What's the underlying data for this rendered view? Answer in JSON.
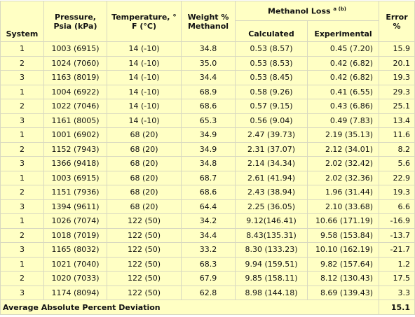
{
  "table": {
    "header": {
      "system": "System",
      "pressure": [
        "Pressure,",
        "Psia (kPa)"
      ],
      "temperature": [
        "Temperature, °",
        "F (°C)"
      ],
      "weight": [
        "Weight %",
        "Methanol"
      ],
      "methanol_loss": "Methanol Loss",
      "methanol_loss_note": "a (b)",
      "calculated": "Calculated",
      "experimental": "Experimental",
      "error": [
        "Error",
        "%"
      ]
    },
    "rows": [
      [
        "1",
        "1003 (6915)",
        "14 (-10)",
        "34.8",
        "0.53 (8.57)",
        "0.45 (7.20)",
        "15.9"
      ],
      [
        "2",
        "1024 (7060)",
        "14 (-10)",
        "35.0",
        "0.53 (8.53)",
        "0.42 (6.82)",
        "20.1"
      ],
      [
        "3",
        "1163 (8019)",
        "14 (-10)",
        "34.4",
        "0.53 (8.45)",
        "0.42 (6.82)",
        "19.3"
      ],
      [
        "1",
        "1004 (6922)",
        "14 (-10)",
        "68.9",
        "0.58 (9.26)",
        "0.41 (6.55)",
        "29.3"
      ],
      [
        "2",
        "1022 (7046)",
        "14 (-10)",
        "68.6",
        "0.57 (9.15)",
        "0.43 (6.86)",
        "25.1"
      ],
      [
        "3",
        "1161 (8005)",
        "14 (-10)",
        "65.3",
        "0.56 (9.04)",
        "0.49 (7.83)",
        "13.4"
      ],
      [
        "1",
        "1001 (6902)",
        "68 (20)",
        "34.9",
        "2.47 (39.73)",
        "2.19 (35.13)",
        "11.6"
      ],
      [
        "2",
        "1152 (7943)",
        "68 (20)",
        "34.9",
        "2.31 (37.07)",
        "2.12 (34.01)",
        "8.2"
      ],
      [
        "3",
        "1366 (9418)",
        "68 (20)",
        "34.8",
        "2.14 (34.34)",
        "2.02 (32.42)",
        "5.6"
      ],
      [
        "1",
        "1003 (6915)",
        "68 (20)",
        "68.7",
        "2.61 (41.94)",
        "2.02 (32.36)",
        "22.9"
      ],
      [
        "2",
        "1151 (7936)",
        "68 (20)",
        "68.6",
        "2.43 (38.94)",
        "1.96 (31.44)",
        "19.3"
      ],
      [
        "3",
        "1394 (9611)",
        "68 (20)",
        "64.4",
        "2.25 (36.05)",
        "2.10 (33.68)",
        "6.6"
      ],
      [
        "1",
        "1026 (7074)",
        "122 (50)",
        "34.2",
        "9.12(146.41)",
        "10.66 (171.19)",
        "-16.9"
      ],
      [
        "2",
        "1018 (7019)",
        "122 (50)",
        "34.4",
        "8.43(135.31)",
        "9.58 (153.84)",
        "-13.7"
      ],
      [
        "3",
        "1165 (8032)",
        "122 (50)",
        "33.2",
        "8.30 (133.23)",
        "10.10 (162.19)",
        "-21.7"
      ],
      [
        "1",
        "1021 (7040)",
        "122 (50)",
        "68.3",
        "9.94 (159.51)",
        "9.82 (157.64)",
        "1.2"
      ],
      [
        "2",
        "1020 (7033)",
        "122 (50)",
        "67.9",
        "9.85 (158.11)",
        "8.12 (130.43)",
        "17.5"
      ],
      [
        "3",
        "1174 (8094)",
        "122 (50)",
        "62.8",
        "8.98 (144.18)",
        "8.69 (139.43)",
        "3.3"
      ]
    ],
    "footer": {
      "label": "Average Absolute Percent Deviation",
      "value": "15.1"
    }
  }
}
